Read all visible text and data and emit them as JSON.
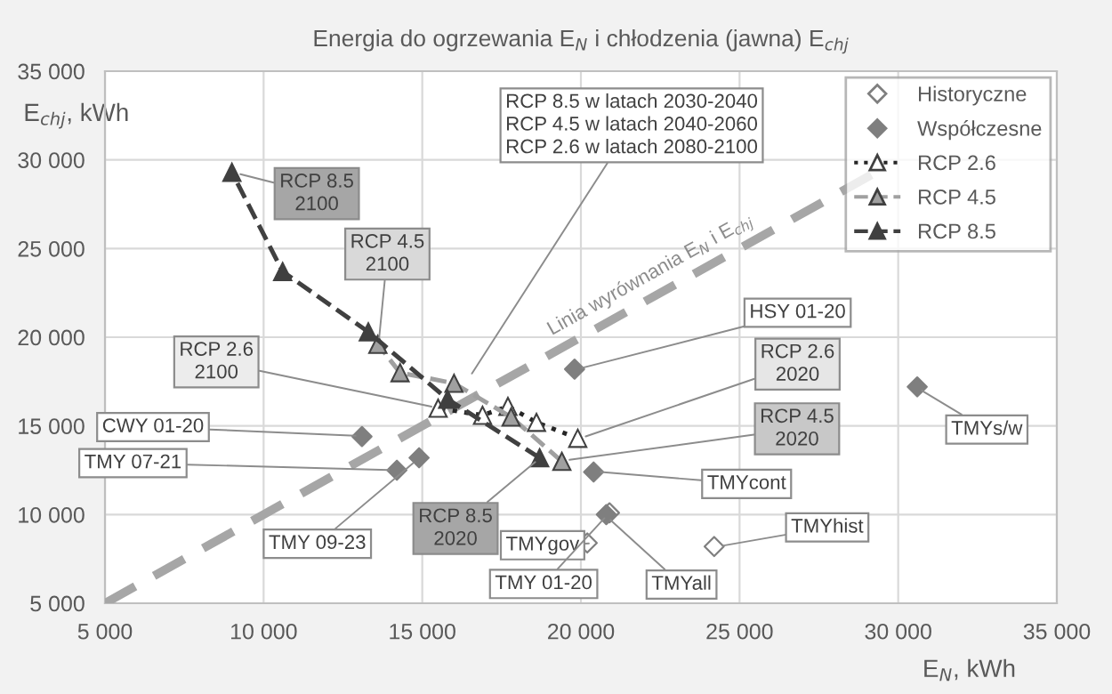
{
  "chart_data": {
    "type": "scatter",
    "title": "Energia do ogrzewania E$_{N}$ i chłodzenia (jawna) E$_{chj}$",
    "xlabel": "E$_{N}$, kWh",
    "ylabel": "E$_{chj}$, kWh",
    "xlim": [
      5000,
      35000
    ],
    "ylim": [
      5000,
      35000
    ],
    "xticks": [
      {
        "value": 5000,
        "label": "5 000"
      },
      {
        "value": 10000,
        "label": "10 000"
      },
      {
        "value": 15000,
        "label": "15 000"
      },
      {
        "value": 20000,
        "label": "20 000"
      },
      {
        "value": 25000,
        "label": "25 000"
      },
      {
        "value": 30000,
        "label": "30 000"
      },
      {
        "value": 35000,
        "label": "35 000"
      }
    ],
    "yticks": [
      {
        "value": 5000,
        "label": "5 000"
      },
      {
        "value": 10000,
        "label": "10 000"
      },
      {
        "value": 15000,
        "label": "15 000"
      },
      {
        "value": 20000,
        "label": "20 000"
      },
      {
        "value": 25000,
        "label": "25 000"
      },
      {
        "value": 30000,
        "label": "30 000"
      },
      {
        "value": 35000,
        "label": "35 000"
      }
    ],
    "grid": true,
    "legend": "top right",
    "series": [
      {
        "type": "line",
        "color": "#a6a6a6",
        "line_style": "dashed",
        "marker": "none",
        "x": [
          5000,
          29500
        ],
        "values": [
          5000,
          29500
        ]
      },
      {
        "name": "Historyczne",
        "color": "#ffffff",
        "marker": "diamond",
        "x": [
          20200,
          24200,
          20900
        ],
        "values": [
          8400,
          8200,
          10100
        ]
      },
      {
        "name": "Współczesne",
        "color": "#7f7f7f",
        "marker": "diamond",
        "x": [
          19800,
          13100,
          14200,
          14900,
          20400,
          20800,
          30600
        ],
        "values": [
          18200,
          14400,
          12500,
          13200,
          12400,
          10000,
          17200
        ]
      },
      {
        "name": "RCP 2.6",
        "type": "line",
        "color": "#ffffff",
        "marker": "triangle",
        "line_style": "dotted",
        "x": [
          19900,
          18600,
          17700,
          16900,
          15500
        ],
        "values": [
          14300,
          15200,
          16100,
          15600,
          16000
        ]
      },
      {
        "name": "RCP 4.5",
        "type": "line",
        "color": "#a0a0a0",
        "marker": "triangle",
        "line_style": "dashed",
        "x": [
          19400,
          17800,
          16000,
          14300,
          13600
        ],
        "values": [
          13000,
          15500,
          17400,
          18000,
          19600
        ]
      },
      {
        "name": "RCP 8.5",
        "type": "line",
        "color": "#404040",
        "marker": "triangle",
        "line_style": "dashed",
        "x": [
          18700,
          15800,
          13300,
          10600,
          9000
        ],
        "values": [
          13200,
          16500,
          20300,
          23700,
          29300
        ]
      }
    ],
    "annotations": [
      {
        "text": "RCP 8.5\n2100",
        "x": 9040,
        "y": 29300
      },
      {
        "text": "RCP 4.5\n2100",
        "x": 13620,
        "y": 19570
      },
      {
        "text": "RCP 2.6\n2100",
        "x": 15520,
        "y": 16000
      },
      {
        "text": "RCP 8.5 w latach 2030-2040\nRCP 4.5 w latach 2040-2060\nRCP 2.6 w latach 2080-2100",
        "x": 16440,
        "y": 17600
      },
      {
        "text": "HSY 01-20",
        "x": 19820,
        "y": 18170
      },
      {
        "text": "RCP 2.6\n2020",
        "x": 19930,
        "y": 14270
      },
      {
        "text": "RCP 4.5\n2020",
        "x": 19410,
        "y": 13030
      },
      {
        "text": "TMYcont",
        "x": 20400,
        "y": 12430
      },
      {
        "text": "CWY 01-20",
        "x": 13130,
        "y": 14430
      },
      {
        "text": "TMY 07-21",
        "x": 14180,
        "y": 12500
      },
      {
        "text": "TMY 09-23",
        "x": 14890,
        "y": 13170
      },
      {
        "text": "RCP 8.5\n2020",
        "x": 18740,
        "y": 13230
      },
      {
        "text": "TMYgov",
        "x": 20250,
        "y": 8370
      },
      {
        "text": "TMY 01-20",
        "x": 20900,
        "y": 10100
      },
      {
        "text": "TMYall",
        "x": 20760,
        "y": 9970
      },
      {
        "text": "TMYhist",
        "x": 24230,
        "y": 8170
      },
      {
        "text": "TMYs/w",
        "x": 30550,
        "y": 17200
      },
      {
        "text": "Linia wyrównania E$_{N}$ i E$_{chj}$",
        "x": 22500,
        "y": 22500
      }
    ]
  }
}
